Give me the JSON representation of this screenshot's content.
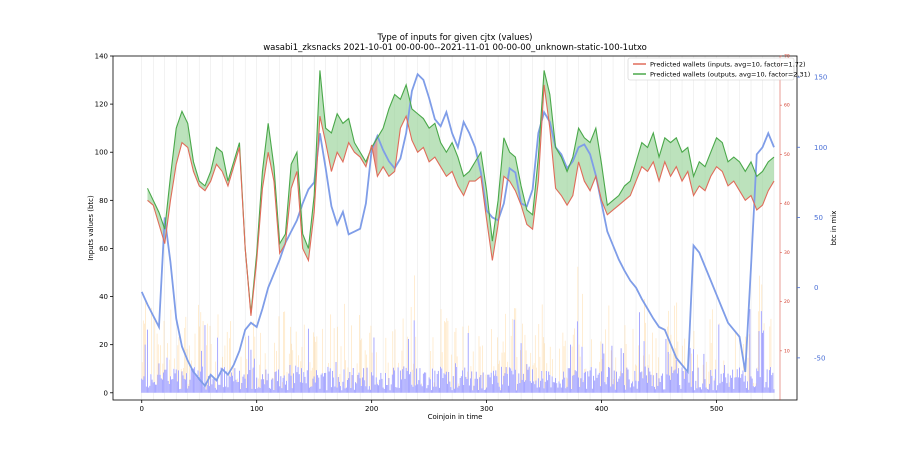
{
  "chart_data": {
    "type": "line",
    "title": "Type of inputs for given cjtx (values)",
    "subtitle": "wasabi1_zksnacks 2021-10-01 00-00-00--2021-11-01 00-00-00_unknown-static-100-1utxo",
    "xlabel": "Coinjoin in time",
    "ylabel": "Inputs values (btc)",
    "y2label": "btc in mix",
    "xlim": [
      -25,
      570
    ],
    "ylim": [
      -3,
      140
    ],
    "y2lim": [
      -80,
      165
    ],
    "y3lim": [
      0,
      70
    ],
    "xticks": [
      0,
      100,
      200,
      300,
      400,
      500
    ],
    "yticks": [
      0,
      20,
      40,
      60,
      80,
      100,
      120,
      140
    ],
    "y2ticks": [
      -50,
      0,
      50,
      100,
      150
    ],
    "y3ticks": [
      10,
      20,
      30,
      40,
      50,
      60,
      70
    ],
    "colors": {
      "inputs": "#e06c5a",
      "outputs": "#4aa84a",
      "fill_green": "#8fcf8f",
      "fill_red": "#f08a8a",
      "mix": "#7f9de8",
      "bars": "#8080ff",
      "bars_light": "#ffd08a",
      "grid": "#e6e6e6"
    },
    "legend_position": "top-right",
    "series": [
      {
        "name": "Predicted wallets (inputs, avg=10, factor=1.72)",
        "axis": "left",
        "x": [
          5,
          10,
          15,
          20,
          25,
          30,
          35,
          40,
          45,
          50,
          55,
          60,
          65,
          70,
          75,
          80,
          85,
          90,
          95,
          100,
          105,
          110,
          115,
          120,
          125,
          130,
          135,
          140,
          145,
          150,
          155,
          160,
          165,
          170,
          175,
          180,
          185,
          190,
          195,
          200,
          205,
          210,
          215,
          220,
          225,
          230,
          235,
          240,
          245,
          250,
          255,
          260,
          265,
          270,
          275,
          280,
          285,
          290,
          295,
          300,
          305,
          310,
          315,
          320,
          325,
          330,
          335,
          340,
          345,
          350,
          355,
          360,
          365,
          370,
          375,
          380,
          385,
          390,
          395,
          400,
          405,
          410,
          415,
          420,
          425,
          430,
          435,
          440,
          445,
          450,
          455,
          460,
          465,
          470,
          475,
          480,
          485,
          490,
          495,
          500,
          505,
          510,
          515,
          520,
          525,
          530,
          535,
          540,
          545,
          550
        ],
        "values": [
          80,
          78,
          70,
          62,
          80,
          95,
          104,
          102,
          92,
          86,
          84,
          88,
          95,
          92,
          86,
          94,
          102,
          60,
          32,
          55,
          85,
          100,
          88,
          58,
          62,
          85,
          92,
          60,
          55,
          75,
          115,
          104,
          92,
          100,
          96,
          104,
          100,
          98,
          94,
          103,
          90,
          94,
          90,
          92,
          110,
          115,
          105,
          100,
          102,
          96,
          98,
          94,
          90,
          92,
          86,
          82,
          88,
          88,
          90,
          72,
          55,
          70,
          90,
          88,
          84,
          78,
          70,
          68,
          88,
          128,
          110,
          85,
          82,
          78,
          82,
          96,
          88,
          84,
          90,
          80,
          74,
          76,
          78,
          80,
          82,
          88,
          94,
          92,
          96,
          88,
          96,
          90,
          94,
          88,
          92,
          82,
          86,
          84,
          90,
          94,
          92,
          86,
          88,
          84,
          80,
          82,
          76,
          78,
          84,
          88
        ]
      },
      {
        "name": "Predicted wallets (outputs, avg=10, factor=2.31)",
        "axis": "left",
        "x": [
          5,
          10,
          15,
          20,
          25,
          30,
          35,
          40,
          45,
          50,
          55,
          60,
          65,
          70,
          75,
          80,
          85,
          90,
          95,
          100,
          105,
          110,
          115,
          120,
          125,
          130,
          135,
          140,
          145,
          150,
          155,
          160,
          165,
          170,
          175,
          180,
          185,
          190,
          195,
          200,
          205,
          210,
          215,
          220,
          225,
          230,
          235,
          240,
          245,
          250,
          255,
          260,
          265,
          270,
          275,
          280,
          285,
          290,
          295,
          300,
          305,
          310,
          315,
          320,
          325,
          330,
          335,
          340,
          345,
          350,
          355,
          360,
          365,
          370,
          375,
          380,
          385,
          390,
          395,
          400,
          405,
          410,
          415,
          420,
          425,
          430,
          435,
          440,
          445,
          450,
          455,
          460,
          465,
          470,
          475,
          480,
          485,
          490,
          495,
          500,
          505,
          510,
          515,
          520,
          525,
          530,
          535,
          540,
          545,
          550
        ],
        "values": [
          85,
          80,
          75,
          68,
          90,
          110,
          117,
          112,
          96,
          88,
          86,
          92,
          102,
          100,
          88,
          96,
          104,
          60,
          33,
          58,
          92,
          112,
          94,
          62,
          66,
          95,
          100,
          66,
          60,
          82,
          134,
          110,
          108,
          116,
          112,
          114,
          104,
          100,
          96,
          102,
          106,
          110,
          118,
          124,
          122,
          128,
          118,
          116,
          114,
          110,
          112,
          104,
          100,
          104,
          98,
          90,
          92,
          96,
          100,
          84,
          63,
          80,
          106,
          100,
          98,
          86,
          76,
          74,
          98,
          134,
          124,
          102,
          98,
          92,
          98,
          110,
          106,
          104,
          110,
          95,
          78,
          80,
          82,
          86,
          88,
          96,
          104,
          102,
          108,
          98,
          106,
          104,
          106,
          100,
          102,
          90,
          96,
          94,
          100,
          106,
          104,
          96,
          98,
          96,
          92,
          96,
          90,
          92,
          96,
          98
        ]
      },
      {
        "name": "",
        "axis": "right",
        "x": [
          0,
          5,
          10,
          15,
          20,
          25,
          30,
          35,
          40,
          45,
          50,
          55,
          60,
          65,
          70,
          75,
          80,
          85,
          90,
          95,
          100,
          105,
          110,
          115,
          120,
          125,
          130,
          135,
          140,
          145,
          150,
          155,
          160,
          165,
          170,
          175,
          180,
          185,
          190,
          195,
          200,
          205,
          210,
          215,
          220,
          225,
          230,
          235,
          240,
          245,
          250,
          255,
          260,
          265,
          270,
          275,
          280,
          285,
          290,
          295,
          300,
          305,
          310,
          315,
          320,
          325,
          330,
          335,
          340,
          345,
          350,
          355,
          360,
          365,
          370,
          375,
          380,
          385,
          390,
          395,
          400,
          405,
          410,
          415,
          420,
          425,
          430,
          435,
          440,
          445,
          450,
          455,
          460,
          465,
          470,
          475,
          480,
          485,
          490,
          495,
          500,
          505,
          510,
          515,
          520,
          525,
          530,
          535,
          540,
          545,
          550
        ],
        "values": [
          -3,
          -12,
          -20,
          -28,
          50,
          18,
          -22,
          -42,
          -52,
          -60,
          -65,
          -70,
          -62,
          -66,
          -58,
          -62,
          -55,
          -45,
          -30,
          -25,
          -28,
          -15,
          0,
          10,
          20,
          32,
          40,
          48,
          60,
          70,
          75,
          110,
          85,
          58,
          45,
          54,
          38,
          40,
          42,
          60,
          98,
          108,
          98,
          90,
          85,
          92,
          110,
          140,
          152,
          148,
          135,
          120,
          115,
          125,
          110,
          100,
          118,
          110,
          100,
          82,
          55,
          50,
          48,
          60,
          85,
          82,
          60,
          58,
          70,
          110,
          125,
          118,
          100,
          95,
          85,
          90,
          100,
          102,
          95,
          80,
          60,
          40,
          30,
          20,
          12,
          5,
          0,
          -8,
          -15,
          -22,
          -28,
          -30,
          -40,
          -50,
          -55,
          -60,
          30,
          25,
          15,
          5,
          -5,
          -15,
          -25,
          -30,
          -35,
          -60,
          15,
          95,
          100,
          110,
          100
        ]
      }
    ],
    "bars": {
      "note": "",
      "x_range": [
        0,
        550
      ]
    }
  }
}
